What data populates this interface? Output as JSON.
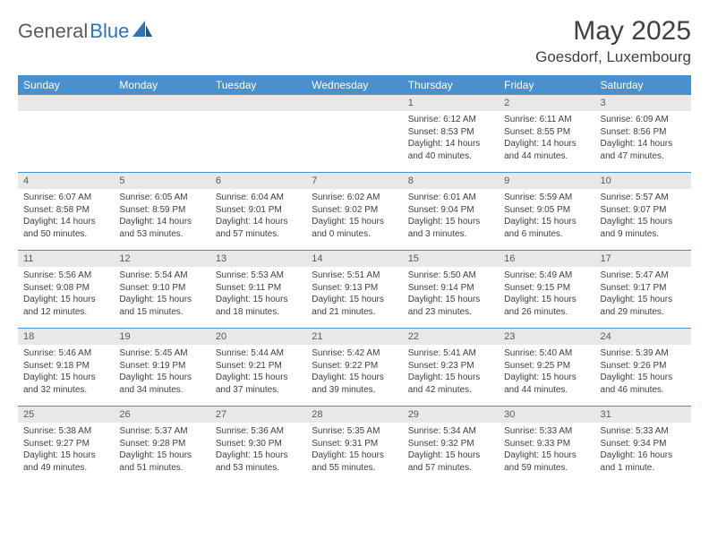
{
  "brand": {
    "text1": "General",
    "text2": "Blue"
  },
  "title": "May 2025",
  "location": "Goesdorf, Luxembourg",
  "colors": {
    "header_bg": "#4a8fce",
    "header_text": "#ffffff",
    "daynum_bg": "#e8e8e8",
    "text": "#404040",
    "logo_gray": "#5a5a5a",
    "logo_blue": "#2e74b5"
  },
  "fonts": {
    "title_size": 30,
    "location_size": 17,
    "weekday_size": 12,
    "daynum_size": 11,
    "body_size": 10
  },
  "weekdays": [
    "Sunday",
    "Monday",
    "Tuesday",
    "Wednesday",
    "Thursday",
    "Friday",
    "Saturday"
  ],
  "weeks": [
    [
      null,
      null,
      null,
      null,
      {
        "n": "1",
        "sunrise": "6:12 AM",
        "sunset": "8:53 PM",
        "daylight": "14 hours and 40 minutes."
      },
      {
        "n": "2",
        "sunrise": "6:11 AM",
        "sunset": "8:55 PM",
        "daylight": "14 hours and 44 minutes."
      },
      {
        "n": "3",
        "sunrise": "6:09 AM",
        "sunset": "8:56 PM",
        "daylight": "14 hours and 47 minutes."
      }
    ],
    [
      {
        "n": "4",
        "sunrise": "6:07 AM",
        "sunset": "8:58 PM",
        "daylight": "14 hours and 50 minutes."
      },
      {
        "n": "5",
        "sunrise": "6:05 AM",
        "sunset": "8:59 PM",
        "daylight": "14 hours and 53 minutes."
      },
      {
        "n": "6",
        "sunrise": "6:04 AM",
        "sunset": "9:01 PM",
        "daylight": "14 hours and 57 minutes."
      },
      {
        "n": "7",
        "sunrise": "6:02 AM",
        "sunset": "9:02 PM",
        "daylight": "15 hours and 0 minutes."
      },
      {
        "n": "8",
        "sunrise": "6:01 AM",
        "sunset": "9:04 PM",
        "daylight": "15 hours and 3 minutes."
      },
      {
        "n": "9",
        "sunrise": "5:59 AM",
        "sunset": "9:05 PM",
        "daylight": "15 hours and 6 minutes."
      },
      {
        "n": "10",
        "sunrise": "5:57 AM",
        "sunset": "9:07 PM",
        "daylight": "15 hours and 9 minutes."
      }
    ],
    [
      {
        "n": "11",
        "sunrise": "5:56 AM",
        "sunset": "9:08 PM",
        "daylight": "15 hours and 12 minutes."
      },
      {
        "n": "12",
        "sunrise": "5:54 AM",
        "sunset": "9:10 PM",
        "daylight": "15 hours and 15 minutes."
      },
      {
        "n": "13",
        "sunrise": "5:53 AM",
        "sunset": "9:11 PM",
        "daylight": "15 hours and 18 minutes."
      },
      {
        "n": "14",
        "sunrise": "5:51 AM",
        "sunset": "9:13 PM",
        "daylight": "15 hours and 21 minutes."
      },
      {
        "n": "15",
        "sunrise": "5:50 AM",
        "sunset": "9:14 PM",
        "daylight": "15 hours and 23 minutes."
      },
      {
        "n": "16",
        "sunrise": "5:49 AM",
        "sunset": "9:15 PM",
        "daylight": "15 hours and 26 minutes."
      },
      {
        "n": "17",
        "sunrise": "5:47 AM",
        "sunset": "9:17 PM",
        "daylight": "15 hours and 29 minutes."
      }
    ],
    [
      {
        "n": "18",
        "sunrise": "5:46 AM",
        "sunset": "9:18 PM",
        "daylight": "15 hours and 32 minutes."
      },
      {
        "n": "19",
        "sunrise": "5:45 AM",
        "sunset": "9:19 PM",
        "daylight": "15 hours and 34 minutes."
      },
      {
        "n": "20",
        "sunrise": "5:44 AM",
        "sunset": "9:21 PM",
        "daylight": "15 hours and 37 minutes."
      },
      {
        "n": "21",
        "sunrise": "5:42 AM",
        "sunset": "9:22 PM",
        "daylight": "15 hours and 39 minutes."
      },
      {
        "n": "22",
        "sunrise": "5:41 AM",
        "sunset": "9:23 PM",
        "daylight": "15 hours and 42 minutes."
      },
      {
        "n": "23",
        "sunrise": "5:40 AM",
        "sunset": "9:25 PM",
        "daylight": "15 hours and 44 minutes."
      },
      {
        "n": "24",
        "sunrise": "5:39 AM",
        "sunset": "9:26 PM",
        "daylight": "15 hours and 46 minutes."
      }
    ],
    [
      {
        "n": "25",
        "sunrise": "5:38 AM",
        "sunset": "9:27 PM",
        "daylight": "15 hours and 49 minutes."
      },
      {
        "n": "26",
        "sunrise": "5:37 AM",
        "sunset": "9:28 PM",
        "daylight": "15 hours and 51 minutes."
      },
      {
        "n": "27",
        "sunrise": "5:36 AM",
        "sunset": "9:30 PM",
        "daylight": "15 hours and 53 minutes."
      },
      {
        "n": "28",
        "sunrise": "5:35 AM",
        "sunset": "9:31 PM",
        "daylight": "15 hours and 55 minutes."
      },
      {
        "n": "29",
        "sunrise": "5:34 AM",
        "sunset": "9:32 PM",
        "daylight": "15 hours and 57 minutes."
      },
      {
        "n": "30",
        "sunrise": "5:33 AM",
        "sunset": "9:33 PM",
        "daylight": "15 hours and 59 minutes."
      },
      {
        "n": "31",
        "sunrise": "5:33 AM",
        "sunset": "9:34 PM",
        "daylight": "16 hours and 1 minute."
      }
    ]
  ],
  "labels": {
    "sunrise": "Sunrise:",
    "sunset": "Sunset:",
    "daylight": "Daylight:"
  }
}
